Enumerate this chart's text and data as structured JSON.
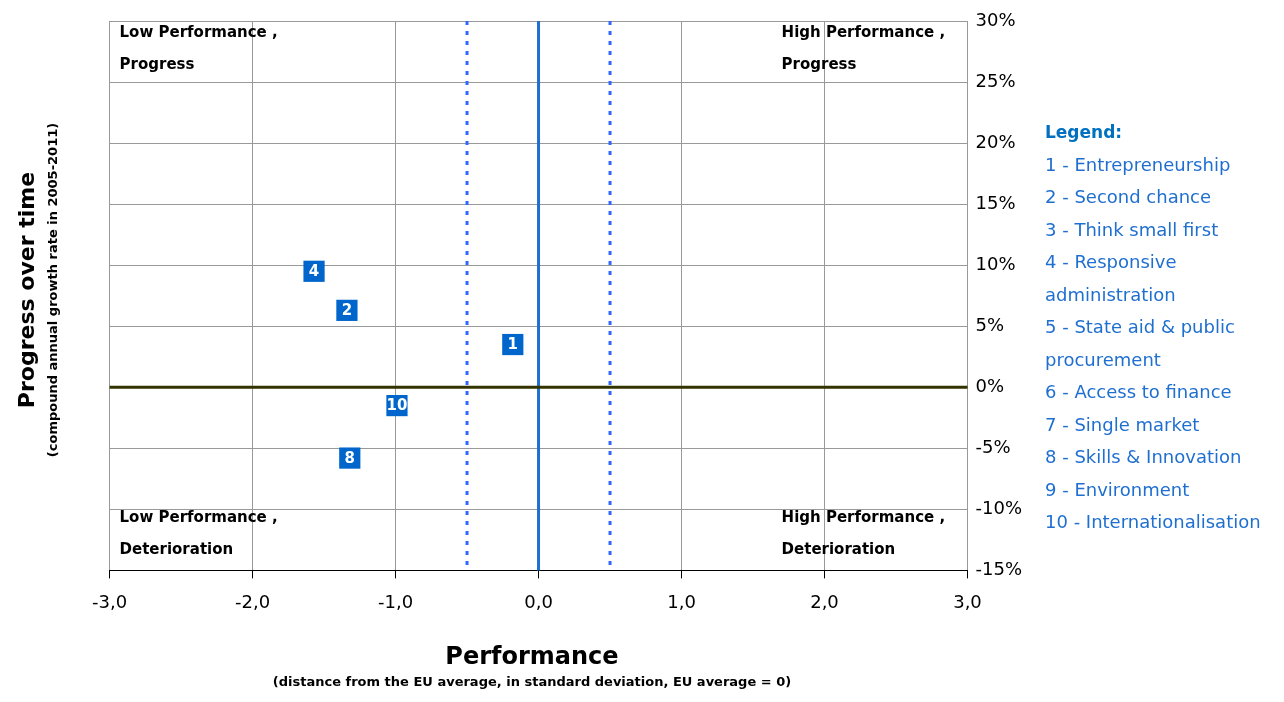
{
  "chart_data": {
    "type": "scatter",
    "xlabel": "Performance",
    "ylabel": "Progress over time",
    "legend_title": "Legend:",
    "x": [
      -1.57,
      -1.34,
      -0.18,
      -0.99,
      -1.32
    ],
    "series": [
      {
        "name": "4",
        "color": "#0066cc",
        "values": [
          9.5,
          null,
          null,
          null,
          null
        ]
      },
      {
        "name": "2",
        "color": "#0066cc",
        "values": [
          null,
          6.3,
          null,
          null,
          null
        ]
      },
      {
        "name": "1",
        "color": "#0066cc",
        "values": [
          null,
          null,
          3.5,
          null,
          null
        ]
      },
      {
        "name": "10",
        "color": "#0066cc",
        "values": [
          null,
          null,
          null,
          -1.5,
          null
        ]
      },
      {
        "name": "8",
        "color": "#0066cc",
        "values": [
          null,
          null,
          null,
          null,
          -5.8
        ]
      }
    ],
    "marker": "square",
    "xlim": [
      -3,
      3
    ],
    "xticks": [
      {
        "value": -3,
        "label": "-3,0"
      },
      {
        "value": -2,
        "label": "-2,0"
      },
      {
        "value": -1,
        "label": "-1,0"
      },
      {
        "value": 0,
        "label": "0,0"
      },
      {
        "value": 1,
        "label": "1,0"
      },
      {
        "value": 2,
        "label": "2,0"
      },
      {
        "value": 3,
        "label": "3,0"
      }
    ],
    "ylim": [
      -15,
      30
    ],
    "yticks": [
      {
        "value": -15,
        "label": "-15%"
      },
      {
        "value": -10,
        "label": "-10%"
      },
      {
        "value": -5,
        "label": "-5%"
      },
      {
        "value": 0,
        "label": "0%"
      },
      {
        "value": 5,
        "label": "5%"
      },
      {
        "value": 10,
        "label": "10%"
      },
      {
        "value": 15,
        "label": "15%"
      },
      {
        "value": 20,
        "label": "20%"
      },
      {
        "value": 25,
        "label": "25%"
      },
      {
        "value": 30,
        "label": "30%"
      }
    ],
    "grid": true,
    "ref_lines": [
      {
        "axis": "x",
        "value": -0.5,
        "color": "#3366ff",
        "line_style": "dotted"
      },
      {
        "axis": "x",
        "value": 0,
        "color": "#1f6fd0",
        "line_style": "solid"
      },
      {
        "axis": "x",
        "value": 0.5,
        "color": "#3366ff",
        "line_style": "dotted"
      },
      {
        "axis": "y",
        "value": 0,
        "color": "#333300",
        "line_style": "solid"
      }
    ],
    "annotations": [
      "Low Performance , Progress",
      "High Performance , Progress",
      "Low Performance , Deterioration",
      "High Performance , Deterioration",
      "(compound annual growth rate in 2005-2011)",
      "(distance from the EU average,  in standard deviation, EU average = 0)",
      "1 - Entrepreneurship",
      "2 - Second chance",
      "3 - Think small first",
      "4 - Responsive administration",
      "5 - State aid & public procurement",
      "6 -  Access to finance",
      "7 - Single market",
      "8 - Skills & Innovation",
      "9 - Environment",
      "10 - Internationalisation"
    ]
  }
}
